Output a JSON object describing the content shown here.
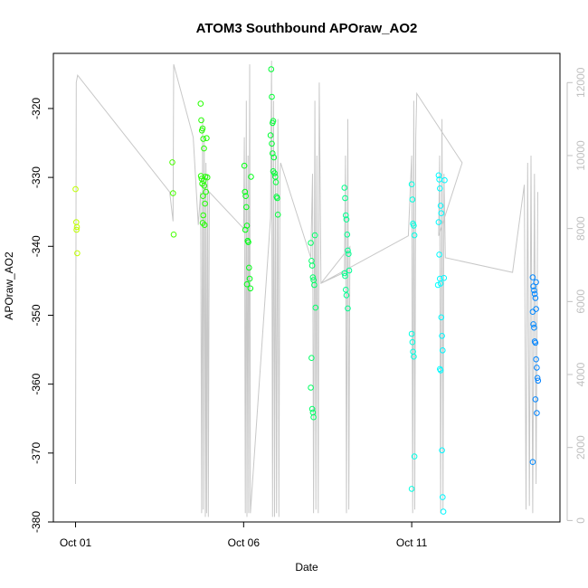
{
  "chart_data": {
    "type": "scatter",
    "title": "ATOM3 Southbound APOraw_AO2",
    "xlabel": "Date",
    "ylabel": "APOraw_AO2",
    "x_ticks": [
      {
        "label": "Oct 01",
        "day": 1
      },
      {
        "label": "Oct 06",
        "day": 6
      },
      {
        "label": "Oct 11",
        "day": 11
      }
    ],
    "xlim_days": [
      0.34,
      15.41
    ],
    "ylim": [
      -380,
      -312
    ],
    "y_ticks": [
      -320,
      -330,
      -340,
      -350,
      -360,
      -370,
      -380
    ],
    "y2lim": [
      -40,
      12800
    ],
    "y2_ticks": [
      0,
      2000,
      4000,
      6000,
      8000,
      10000,
      12000
    ],
    "colors": {
      "line": "#c8c8c8",
      "right_axis": "#c0c0c0"
    },
    "altitude_trace": [
      [
        1.0,
        1000
      ],
      [
        1.02,
        12000
      ],
      [
        1.06,
        12200
      ],
      [
        3.8,
        9000
      ],
      [
        3.9,
        8200
      ],
      [
        3.92,
        12500
      ],
      [
        4.5,
        10500
      ],
      [
        4.65,
        8100
      ],
      [
        4.72,
        9000
      ],
      [
        4.75,
        200
      ],
      [
        4.78,
        11000
      ],
      [
        4.8,
        300
      ],
      [
        4.83,
        10400
      ],
      [
        4.86,
        100
      ],
      [
        4.88,
        9800
      ],
      [
        4.9,
        200
      ],
      [
        4.93,
        9500
      ],
      [
        4.95,
        100
      ],
      [
        4.98,
        9000
      ],
      [
        6.0,
        8000
      ],
      [
        6.02,
        10500
      ],
      [
        6.05,
        200
      ],
      [
        6.08,
        11500
      ],
      [
        6.1,
        100
      ],
      [
        6.13,
        10000
      ],
      [
        6.15,
        200
      ],
      [
        6.18,
        12500
      ],
      [
        6.2,
        200
      ],
      [
        6.8,
        8300
      ],
      [
        6.83,
        12600
      ],
      [
        6.86,
        100
      ],
      [
        6.89,
        11500
      ],
      [
        6.92,
        100
      ],
      [
        6.95,
        10000
      ],
      [
        6.98,
        200
      ],
      [
        7.02,
        11000
      ],
      [
        7.05,
        100
      ],
      [
        7.08,
        9500
      ],
      [
        7.1,
        9800
      ],
      [
        8.0,
        7200
      ],
      [
        8.05,
        9500
      ],
      [
        8.08,
        200
      ],
      [
        8.12,
        11500
      ],
      [
        8.15,
        300
      ],
      [
        8.18,
        10000
      ],
      [
        8.22,
        200
      ],
      [
        8.25,
        12000
      ],
      [
        8.3,
        6500
      ],
      [
        9.0,
        6800
      ],
      [
        9.03,
        10000
      ],
      [
        9.06,
        200
      ],
      [
        9.1,
        11000
      ],
      [
        9.13,
        300
      ],
      [
        9.16,
        7500
      ],
      [
        8.3,
        6500
      ],
      [
        10.9,
        7800
      ],
      [
        11.0,
        10000
      ],
      [
        11.03,
        200
      ],
      [
        11.06,
        11500
      ],
      [
        11.09,
        300
      ],
      [
        11.12,
        10500
      ],
      [
        11.15,
        11700
      ],
      [
        12.5,
        9800
      ],
      [
        11.8,
        7800
      ],
      [
        11.83,
        10000
      ],
      [
        11.86,
        200
      ],
      [
        11.9,
        11000
      ],
      [
        11.93,
        300
      ],
      [
        11.96,
        9500
      ],
      [
        12.0,
        7200
      ],
      [
        14.0,
        6800
      ],
      [
        14.35,
        9200
      ],
      [
        14.4,
        300
      ],
      [
        14.45,
        9800
      ],
      [
        14.5,
        400
      ],
      [
        14.55,
        10000
      ],
      [
        14.6,
        200
      ],
      [
        14.65,
        9500
      ],
      [
        14.7,
        1000
      ],
      [
        14.75,
        9000
      ]
    ],
    "points": [
      [
        1.0,
        -331.7
      ],
      [
        1.02,
        -336.5
      ],
      [
        1.03,
        -337.6
      ],
      [
        1.04,
        -337.2
      ],
      [
        1.05,
        -341.0
      ],
      [
        3.88,
        -327.8
      ],
      [
        3.9,
        -332.3
      ],
      [
        3.92,
        -338.3
      ],
      [
        4.72,
        -319.3
      ],
      [
        4.74,
        -321.7
      ],
      [
        4.76,
        -323.2
      ],
      [
        4.78,
        -322.9
      ],
      [
        4.8,
        -324.4
      ],
      [
        4.82,
        -325.8
      ],
      [
        4.73,
        -329.8
      ],
      [
        4.75,
        -330.2
      ],
      [
        4.77,
        -330.9
      ],
      [
        4.79,
        -332.7
      ],
      [
        4.81,
        -330.5
      ],
      [
        4.83,
        -331.2
      ],
      [
        4.85,
        -333.8
      ],
      [
        4.78,
        -336.6
      ],
      [
        4.8,
        -335.5
      ],
      [
        4.84,
        -336.9
      ],
      [
        4.86,
        -329.9
      ],
      [
        4.88,
        -332.1
      ],
      [
        4.9,
        -324.3
      ],
      [
        4.92,
        -330.0
      ],
      [
        6.02,
        -328.3
      ],
      [
        6.04,
        -332.1
      ],
      [
        6.06,
        -332.7
      ],
      [
        6.08,
        -334.3
      ],
      [
        6.1,
        -337.0
      ],
      [
        6.05,
        -337.6
      ],
      [
        6.12,
        -339.2
      ],
      [
        6.14,
        -339.4
      ],
      [
        6.16,
        -343.1
      ],
      [
        6.18,
        -344.7
      ],
      [
        6.2,
        -346.1
      ],
      [
        6.22,
        -329.9
      ],
      [
        6.1,
        -345.5
      ],
      [
        6.82,
        -314.3
      ],
      [
        6.84,
        -318.3
      ],
      [
        6.86,
        -322.1
      ],
      [
        6.88,
        -321.8
      ],
      [
        6.8,
        -323.9
      ],
      [
        6.84,
        -325.1
      ],
      [
        6.86,
        -326.5
      ],
      [
        6.9,
        -327.1
      ],
      [
        6.92,
        -329.4
      ],
      [
        6.94,
        -329.9
      ],
      [
        6.96,
        -330.7
      ],
      [
        6.98,
        -332.8
      ],
      [
        7.0,
        -333.0
      ],
      [
        7.02,
        -335.4
      ],
      [
        6.88,
        -329.1
      ],
      [
        8.0,
        -339.5
      ],
      [
        8.02,
        -342.1
      ],
      [
        8.04,
        -342.8
      ],
      [
        8.06,
        -344.5
      ],
      [
        8.08,
        -344.9
      ],
      [
        8.1,
        -345.6
      ],
      [
        8.12,
        -338.4
      ],
      [
        8.14,
        -348.9
      ],
      [
        8.02,
        -356.2
      ],
      [
        8.0,
        -360.5
      ],
      [
        8.04,
        -363.6
      ],
      [
        8.06,
        -364.1
      ],
      [
        8.08,
        -364.8
      ],
      [
        9.0,
        -331.5
      ],
      [
        9.02,
        -333.0
      ],
      [
        9.04,
        -335.5
      ],
      [
        9.06,
        -336.1
      ],
      [
        9.08,
        -338.3
      ],
      [
        9.1,
        -340.6
      ],
      [
        9.12,
        -341.1
      ],
      [
        9.14,
        -343.5
      ],
      [
        9.0,
        -343.9
      ],
      [
        9.02,
        -344.3
      ],
      [
        9.04,
        -346.3
      ],
      [
        9.06,
        -347.1
      ],
      [
        9.1,
        -349.0
      ],
      [
        11.0,
        -331.0
      ],
      [
        11.02,
        -333.2
      ],
      [
        11.04,
        -336.7
      ],
      [
        11.06,
        -337.0
      ],
      [
        11.08,
        -338.4
      ],
      [
        11.0,
        -352.7
      ],
      [
        11.02,
        -353.9
      ],
      [
        11.04,
        -355.3
      ],
      [
        11.06,
        -356.0
      ],
      [
        11.08,
        -370.5
      ],
      [
        11.0,
        -375.2
      ],
      [
        11.8,
        -329.7
      ],
      [
        11.82,
        -330.3
      ],
      [
        11.84,
        -331.6
      ],
      [
        11.86,
        -334.1
      ],
      [
        11.88,
        -335.2
      ],
      [
        11.8,
        -336.5
      ],
      [
        11.82,
        -341.2
      ],
      [
        11.84,
        -344.7
      ],
      [
        11.86,
        -345.4
      ],
      [
        11.88,
        -350.3
      ],
      [
        11.9,
        -353.0
      ],
      [
        11.92,
        -355.1
      ],
      [
        11.84,
        -357.8
      ],
      [
        11.86,
        -358.0
      ],
      [
        11.9,
        -369.6
      ],
      [
        11.92,
        -376.4
      ],
      [
        11.94,
        -378.5
      ],
      [
        11.96,
        -344.6
      ],
      [
        11.98,
        -330.4
      ],
      [
        11.78,
        -345.6
      ],
      [
        14.6,
        -344.5
      ],
      [
        14.62,
        -345.8
      ],
      [
        14.64,
        -346.4
      ],
      [
        14.66,
        -346.9
      ],
      [
        14.68,
        -347.5
      ],
      [
        14.7,
        -349.1
      ],
      [
        14.6,
        -349.5
      ],
      [
        14.62,
        -351.3
      ],
      [
        14.64,
        -351.8
      ],
      [
        14.66,
        -353.8
      ],
      [
        14.68,
        -354.0
      ],
      [
        14.7,
        -356.4
      ],
      [
        14.72,
        -357.6
      ],
      [
        14.74,
        -359.1
      ],
      [
        14.76,
        -359.5
      ],
      [
        14.68,
        -362.2
      ],
      [
        14.72,
        -364.2
      ],
      [
        14.6,
        -371.3
      ],
      [
        14.7,
        -345.2
      ]
    ]
  }
}
